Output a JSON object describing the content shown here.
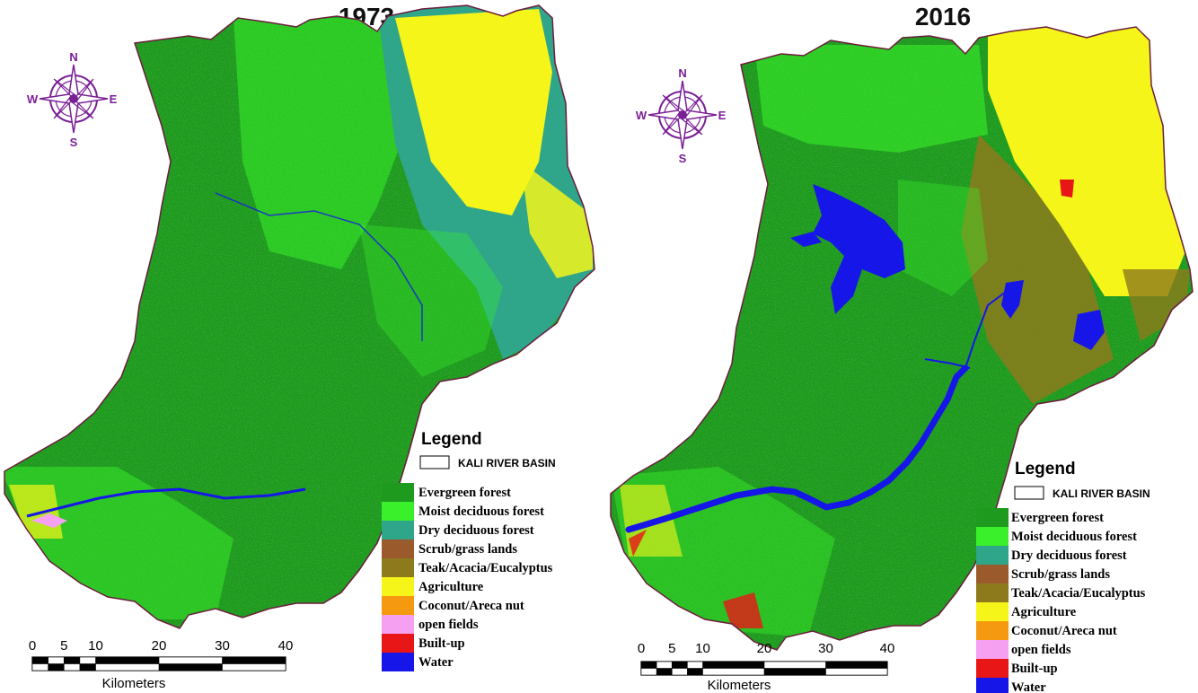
{
  "maps": [
    {
      "year": "1973",
      "legend": {
        "title": "Legend",
        "basin_label": "KALI RIVER BASIN",
        "items": [
          {
            "label": "Evergreen forest",
            "color": "#1e9a1e"
          },
          {
            "label": "Moist deciduous forest",
            "color": "#39f02a"
          },
          {
            "label": "Dry deciduous forest",
            "color": "#2fa58a"
          },
          {
            "label": "Scrub/grass lands",
            "color": "#9a5a2c"
          },
          {
            "label": "Teak/Acacia/Eucalyptus",
            "color": "#8c7a1c"
          },
          {
            "label": "Agriculture",
            "color": "#f5f51a"
          },
          {
            "label": "Coconut/Areca nut",
            "color": "#f59a10"
          },
          {
            "label": "open fields",
            "color": "#f5a0f0"
          },
          {
            "label": "Built-up",
            "color": "#e81616"
          },
          {
            "label": "Water",
            "color": "#1616e8"
          }
        ]
      },
      "scale": {
        "ticks": [
          "0",
          "5",
          "10",
          "20",
          "30",
          "40"
        ],
        "unit": "Kilometers"
      }
    },
    {
      "year": "2016",
      "legend": {
        "title": "Legend",
        "basin_label": "KALI RIVER BASIN",
        "items": [
          {
            "label": "Evergreen forest",
            "color": "#1e9a1e"
          },
          {
            "label": "Moist deciduous forest",
            "color": "#39f02a"
          },
          {
            "label": "Dry deciduous forest",
            "color": "#2fa58a"
          },
          {
            "label": "Scrub/grass lands",
            "color": "#9a5a2c"
          },
          {
            "label": "Teak/Acacia/Eucalyptus",
            "color": "#8c7a1c"
          },
          {
            "label": "Agriculture",
            "color": "#f5f51a"
          },
          {
            "label": "Coconut/Areca nut",
            "color": "#f59a10"
          },
          {
            "label": "open fields",
            "color": "#f5a0f0"
          },
          {
            "label": "Built-up",
            "color": "#e81616"
          },
          {
            "label": "Water",
            "color": "#1616e8"
          }
        ]
      },
      "scale": {
        "ticks": [
          "0",
          "5",
          "10",
          "20",
          "30",
          "40"
        ],
        "unit": "Kilometers"
      }
    }
  ],
  "compass": {
    "n": "N",
    "s": "S",
    "e": "E",
    "w": "W",
    "color": "#7a1f96"
  },
  "colors": {
    "boundary": "#6b1c3c",
    "evergreen": "#1e9a1e",
    "moist": "#39f02a",
    "dry": "#2fa58a",
    "scrub": "#9a5a2c",
    "teak": "#8c7a1c",
    "agriculture": "#f5f51a",
    "coconut": "#f59a10",
    "open_fields": "#f5a0f0",
    "builtup": "#e81616",
    "water": "#1616e8"
  }
}
